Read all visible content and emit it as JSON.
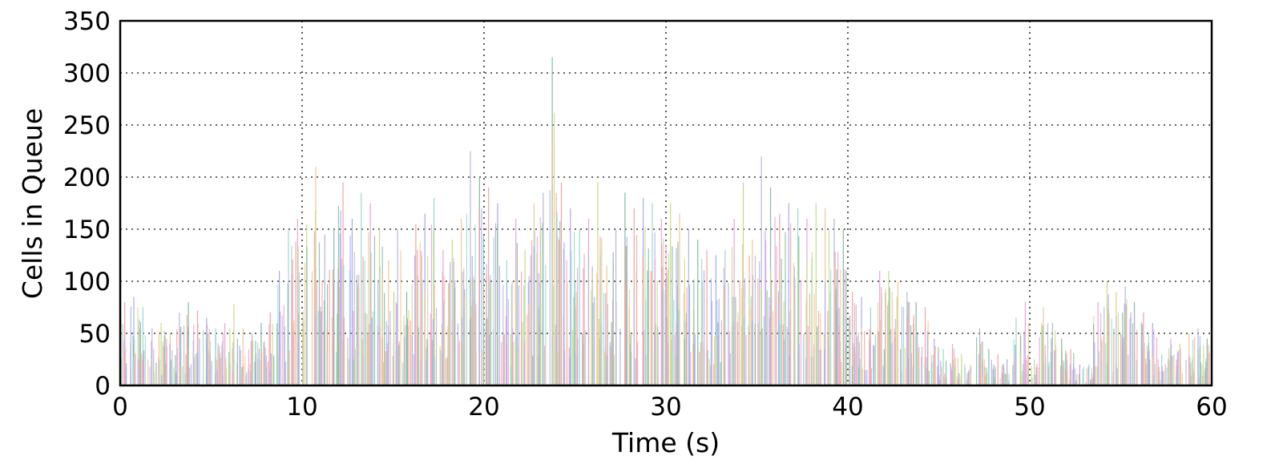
{
  "chart_data": {
    "type": "bar",
    "title": "",
    "xlabel": "Time (s)",
    "ylabel": "Cells in Queue",
    "xlim": [
      0,
      60
    ],
    "ylim": [
      0,
      350
    ],
    "xticks": [
      0,
      10,
      20,
      30,
      40,
      50,
      60
    ],
    "yticks": [
      0,
      50,
      100,
      150,
      200,
      250,
      300,
      350
    ],
    "grid": true,
    "legend": "none",
    "palette": [
      "#f4a3a3",
      "#a9a9ef",
      "#9fd6cf",
      "#eaa4d6",
      "#c9d98a",
      "#f2c59a",
      "#b7b7d9",
      "#86b9a0"
    ],
    "series": [
      {
        "x": [
          0.25,
          0.75,
          1.25,
          1.75,
          2.25,
          2.75,
          3.25,
          3.75,
          4.25,
          4.75,
          5.25,
          5.75,
          6.25,
          6.75,
          7.25,
          7.75,
          8.25,
          8.75,
          9.25,
          9.75,
          10.25,
          10.75,
          11.25,
          11.75,
          12.25,
          12.75,
          13.25,
          13.75,
          14.25,
          14.75,
          15.25,
          15.75,
          16.25,
          16.75,
          17.25,
          17.75,
          18.25,
          18.75,
          19.25,
          19.75,
          20.25,
          20.75,
          21.25,
          21.75,
          22.25,
          22.75,
          23.25,
          23.75,
          24.25,
          24.75,
          25.25,
          25.75,
          26.25,
          26.75,
          27.25,
          27.75,
          28.25,
          28.75,
          29.25,
          29.75,
          30.25,
          30.75,
          31.25,
          31.75,
          32.25,
          32.75,
          33.25,
          33.75,
          34.25,
          34.75,
          35.25,
          35.75,
          36.25,
          36.75,
          37.25,
          37.75,
          38.25,
          38.75,
          39.25,
          39.75,
          40.25,
          40.75,
          41.25,
          41.75,
          42.25,
          42.75,
          43.25,
          43.75,
          44.25,
          44.75,
          45.25,
          45.75,
          46.25,
          46.75,
          47.25,
          47.75,
          48.25,
          48.75,
          49.25,
          49.75,
          50.25,
          50.75,
          51.25,
          51.75,
          52.25,
          52.75,
          53.25,
          53.75,
          54.25,
          54.75,
          55.25,
          55.75,
          56.25,
          56.75,
          57.25,
          57.75,
          58.25,
          58.75,
          59.25,
          59.75
        ],
        "values": [
          80,
          85,
          75,
          55,
          60,
          50,
          70,
          80,
          72,
          65,
          55,
          60,
          78,
          55,
          50,
          60,
          70,
          110,
          150,
          160,
          155,
          210,
          145,
          150,
          195,
          160,
          185,
          175,
          150,
          120,
          150,
          90,
          155,
          165,
          180,
          130,
          140,
          160,
          225,
          200,
          190,
          175,
          120,
          160,
          130,
          175,
          185,
          315,
          195,
          170,
          150,
          160,
          195,
          115,
          150,
          185,
          170,
          180,
          175,
          160,
          175,
          165,
          150,
          140,
          130,
          125,
          130,
          160,
          195,
          140,
          220,
          190,
          165,
          175,
          170,
          160,
          175,
          170,
          160,
          150,
          90,
          85,
          75,
          110,
          110,
          100,
          90,
          80,
          75,
          45,
          35,
          40,
          30,
          20,
          55,
          35,
          30,
          25,
          65,
          80,
          25,
          75,
          60,
          45,
          35,
          20,
          20,
          80,
          100,
          90,
          95,
          80,
          70,
          60,
          30,
          45,
          40,
          50,
          55,
          45
        ]
      }
    ]
  }
}
